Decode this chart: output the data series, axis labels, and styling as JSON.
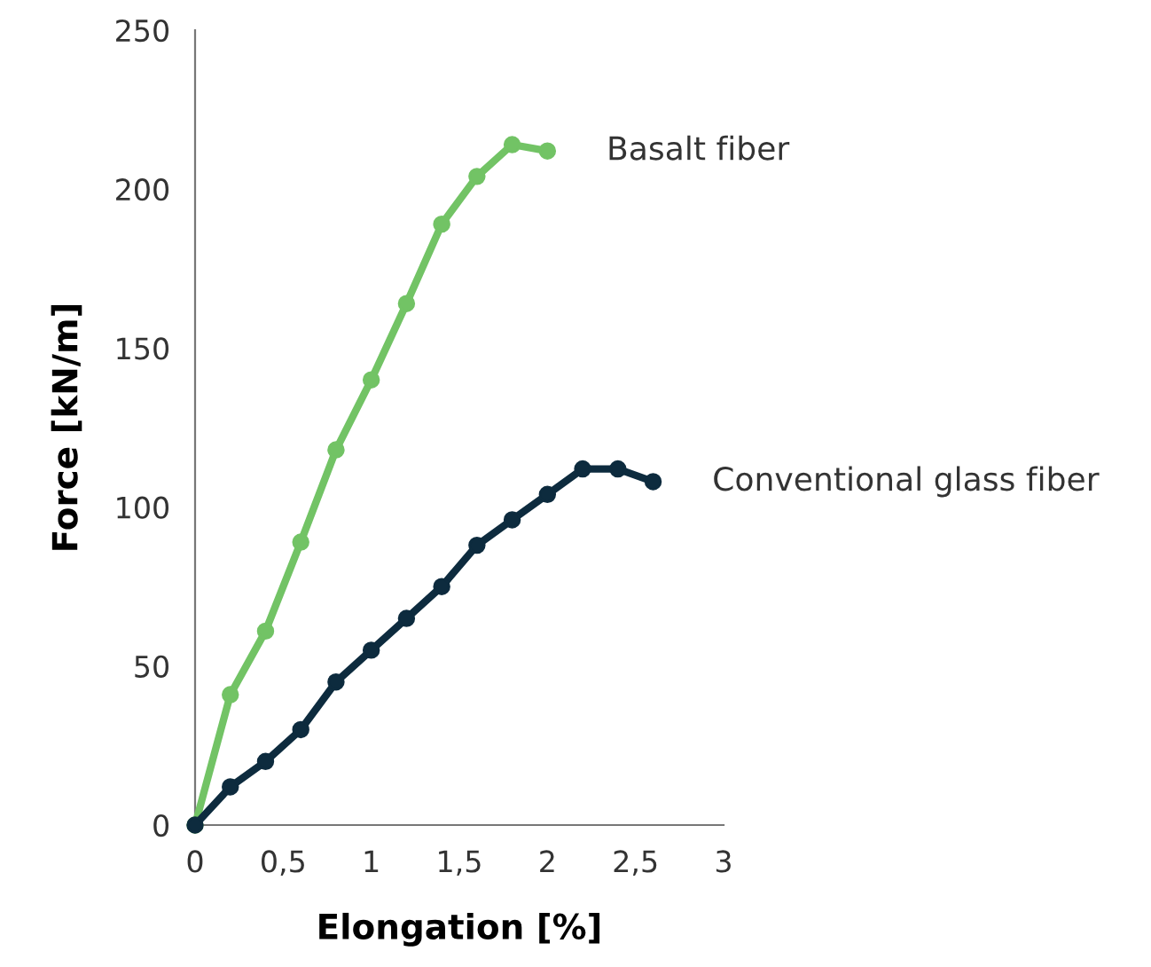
{
  "chart_data": {
    "type": "line",
    "xlabel": "Elongation [%]",
    "ylabel": "Force [kN/m]",
    "xlim": [
      0,
      3
    ],
    "ylim": [
      0,
      250
    ],
    "xticks": [
      0,
      {
        "value": 0.5,
        "label": "0,5"
      },
      1,
      {
        "value": 1.5,
        "label": "1,5"
      },
      2,
      {
        "value": 2.5,
        "label": "2,5"
      },
      3
    ],
    "yticks": [
      0,
      50,
      100,
      150,
      200,
      250
    ],
    "grid": false,
    "legend": false,
    "marker": "circle",
    "line_style": "solid",
    "series": [
      {
        "name": "Basalt fiber",
        "color": "#72c365",
        "x": [
          0,
          0.2,
          0.4,
          0.6,
          0.8,
          1.0,
          1.2,
          1.4,
          1.6,
          1.8,
          2.0
        ],
        "values": [
          0,
          41,
          61,
          89,
          118,
          140,
          164,
          189,
          204,
          214,
          212
        ]
      },
      {
        "name": "Conventional glass fiber",
        "color": "#0d2b3e",
        "x": [
          0,
          0.2,
          0.4,
          0.6,
          0.8,
          1.0,
          1.2,
          1.4,
          1.6,
          1.8,
          2.0,
          2.2,
          2.4,
          2.6
        ],
        "values": [
          0,
          12,
          20,
          30,
          45,
          55,
          65,
          75,
          88,
          96,
          104,
          112,
          112,
          108
        ]
      }
    ]
  }
}
